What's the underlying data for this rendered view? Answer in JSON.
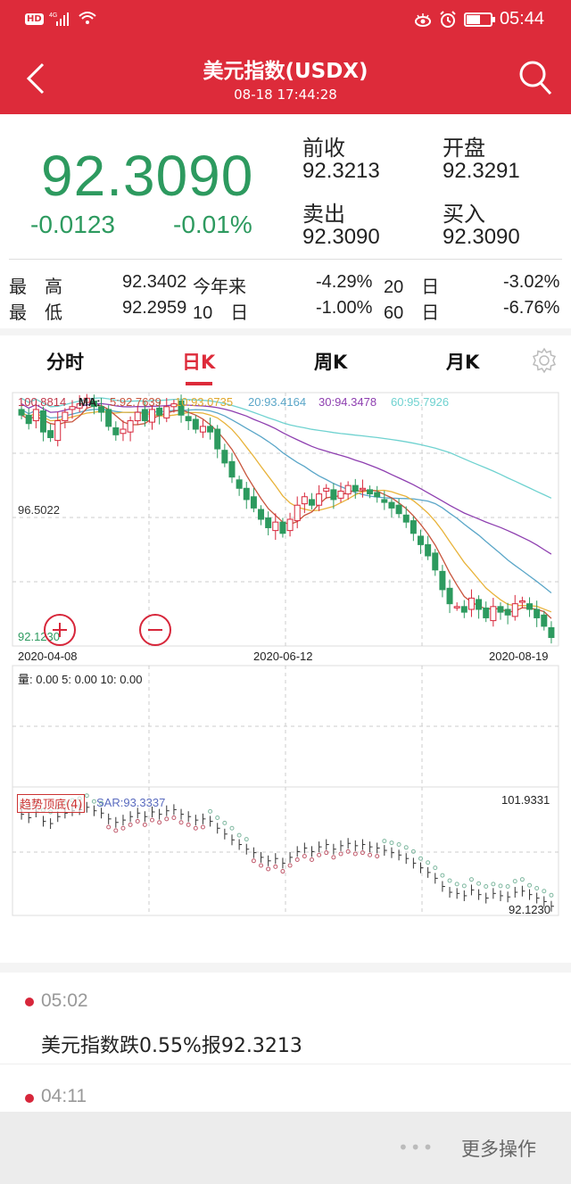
{
  "status_bar": {
    "left_indicators": [
      "HD",
      "4G"
    ],
    "time": "05:44",
    "icons": [
      "hd-icon",
      "signal-icon",
      "wifi-icon",
      "eye-comfort-icon",
      "alarm-icon",
      "battery-icon"
    ]
  },
  "header": {
    "title": "美元指数(USDX)",
    "subtitle": "08-18 17:44:28",
    "back_icon": "chevron-left-icon",
    "search_icon": "search-icon",
    "bg_color": "#dd2b3a"
  },
  "quote": {
    "price": "92.3090",
    "change": "-0.0123",
    "change_pct": "-0.01%",
    "color": "#2d9a5f",
    "fields": [
      {
        "label": "前收",
        "value": "92.3213"
      },
      {
        "label": "开盘",
        "value": "92.3291"
      },
      {
        "label": "卖出",
        "value": "92.3090"
      },
      {
        "label": "买入",
        "value": "92.3090"
      }
    ],
    "stats": [
      [
        {
          "label": "最　高",
          "value": "92.3402"
        },
        {
          "label": "今年来",
          "value": "-4.29%"
        },
        {
          "label": "20　日",
          "value": "-3.02%"
        }
      ],
      [
        {
          "label": "最　低",
          "value": "92.2959"
        },
        {
          "label": "10　日",
          "value": "-1.00%"
        },
        {
          "label": "60　日",
          "value": "-6.76%"
        }
      ]
    ]
  },
  "tabs": {
    "items": [
      {
        "label": "分时",
        "active": false
      },
      {
        "label": "日K",
        "active": true
      },
      {
        "label": "周K",
        "active": false
      },
      {
        "label": "月K",
        "active": false
      }
    ],
    "settings_icon": "gear-icon"
  },
  "chart": {
    "ma_legend": {
      "high_label": "100.8814",
      "prefix": "MA:",
      "ma5": "5:92.7639",
      "ma10": "10:93.0735",
      "ma20": "20:93.4164",
      "ma30": "30:94.3478",
      "ma60": "60:95.7926"
    },
    "mid_label": "96.5022",
    "low_label": "92.1230",
    "dates": [
      "2020-04-08",
      "2020-06-12",
      "2020-08-19"
    ],
    "volume_legend": "量: 0.00 5: 0.00 10: 0.00",
    "sar": {
      "badge": "趋势顶底(4)",
      "label": "SAR:93.3337",
      "high": "101.9331",
      "low": "92.1230"
    },
    "colors": {
      "up": "#d7263a",
      "down": "#2d9a5f",
      "ma5": "#c8553d",
      "ma10": "#e8b33a",
      "ma20": "#5aa6c8",
      "ma30": "#8e3fb0",
      "ma60": "#6fd2d0"
    }
  },
  "chart_data": {
    "type": "candlestick",
    "title": "美元指数(USDX) 日K",
    "x_range": [
      "2020-04-08",
      "2020-08-19"
    ],
    "x_ticks": [
      "2020-04-08",
      "2020-06-12",
      "2020-08-19"
    ],
    "y_labels": {
      "top": 100.8814,
      "mid": 96.5022,
      "bottom": 92.123
    },
    "series": [
      {
        "name": "MA5",
        "last": 92.7639
      },
      {
        "name": "MA10",
        "last": 93.0735
      },
      {
        "name": "MA20",
        "last": 93.4164
      },
      {
        "name": "MA30",
        "last": 94.3478
      },
      {
        "name": "MA60",
        "last": 95.7926
      }
    ],
    "close_approx": [
      100.2,
      99.9,
      100.4,
      99.6,
      99.4,
      100.0,
      100.3,
      100.5,
      100.6,
      100.8,
      100.5,
      100.3,
      99.8,
      99.5,
      99.7,
      100.0,
      100.3,
      100.0,
      100.4,
      100.2,
      100.5,
      100.6,
      100.2,
      100.0,
      99.7,
      99.8,
      99.6,
      99.0,
      98.5,
      98.0,
      97.6,
      97.2,
      96.9,
      96.5,
      96.2,
      96.4,
      96.0,
      96.5,
      97.0,
      97.3,
      97.0,
      97.4,
      97.6,
      97.2,
      97.5,
      97.7,
      97.5,
      97.6,
      97.4,
      97.3,
      97.1,
      96.9,
      96.7,
      96.4,
      96.0,
      95.6,
      95.2,
      94.7,
      94.0,
      93.5,
      93.4,
      93.2,
      93.7,
      93.3,
      93.0,
      93.4,
      93.2,
      93.1,
      93.5,
      93.6,
      93.3,
      93.0,
      92.7,
      92.3
    ],
    "sar_indicator": {
      "value": 93.3337,
      "range": [
        92.123,
        101.9331
      ]
    },
    "volume": {
      "vol": 0.0,
      "ma5": 0.0,
      "ma10": 0.0
    }
  },
  "news": {
    "items": [
      {
        "time": "05:02",
        "text": "美元指数跌0.55%报92.3213"
      },
      {
        "time": "04:11",
        "text": ""
      }
    ]
  },
  "bottom_bar": {
    "dots": "•••",
    "more_label": "更多操作"
  }
}
